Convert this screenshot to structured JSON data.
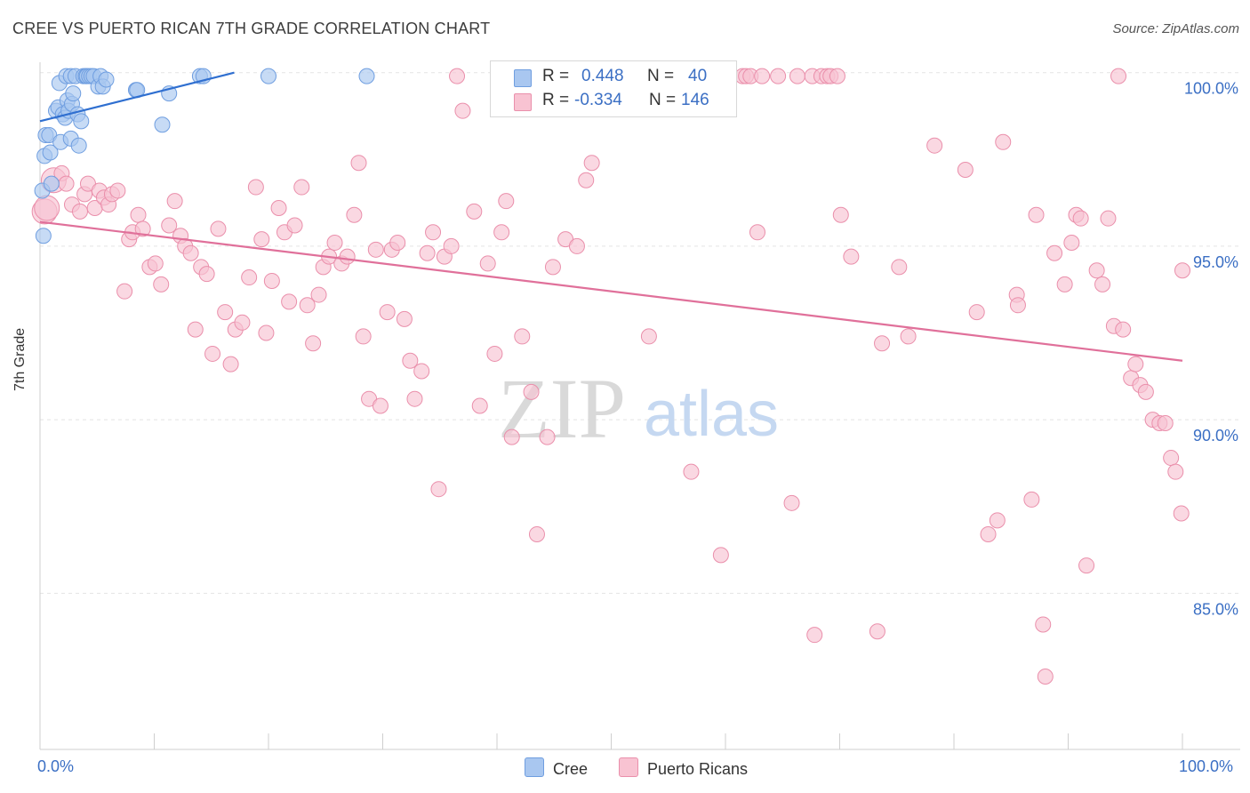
{
  "title": "CREE VS PUERTO RICAN 7TH GRADE CORRELATION CHART",
  "source": "Source: ZipAtlas.com",
  "watermark": {
    "zip": "ZIP",
    "atlas": "atlas"
  },
  "legend": {
    "r_label": "R =",
    "n_label": "N =",
    "rows": [
      {
        "name": "Cree",
        "r": "0.448",
        "n": "40",
        "color": "#a9c7f0",
        "border": "#6f9ee0"
      },
      {
        "name": "Puerto Ricans",
        "r": "-0.334",
        "n": "146",
        "color": "#f8c3d2",
        "border": "#ea8fab"
      }
    ]
  },
  "axes": {
    "x_min_label": "0.0%",
    "x_max_label": "100.0%",
    "y_ticks": [
      "100.0%",
      "95.0%",
      "90.0%",
      "85.0%"
    ],
    "y_label": "7th Grade"
  },
  "chart_data": {
    "type": "scatter",
    "xlim": [
      0,
      100
    ],
    "ylim": [
      80.5,
      100.3
    ],
    "grid": true,
    "series": [
      {
        "name": "Cree",
        "color": "#6f9ee0",
        "fill": "#a9c7f0",
        "trend": {
          "x": [
            0,
            17
          ],
          "y": [
            98.6,
            100.0
          ]
        },
        "points": [
          [
            0.2,
            96.6
          ],
          [
            0.4,
            97.6
          ],
          [
            0.5,
            98.2
          ],
          [
            0.8,
            98.2
          ],
          [
            0.9,
            97.7
          ],
          [
            1.0,
            96.8
          ],
          [
            1.4,
            98.9
          ],
          [
            1.6,
            99.0
          ],
          [
            1.7,
            99.7
          ],
          [
            1.8,
            98.0
          ],
          [
            2.0,
            98.8
          ],
          [
            2.2,
            98.7
          ],
          [
            2.3,
            99.9
          ],
          [
            2.4,
            99.2
          ],
          [
            2.5,
            98.9
          ],
          [
            2.7,
            98.1
          ],
          [
            2.7,
            99.9
          ],
          [
            2.8,
            99.1
          ],
          [
            2.9,
            99.4
          ],
          [
            3.1,
            99.9
          ],
          [
            3.3,
            98.8
          ],
          [
            3.4,
            97.9
          ],
          [
            3.6,
            98.6
          ],
          [
            3.8,
            99.9
          ],
          [
            4.0,
            99.9
          ],
          [
            4.1,
            99.9
          ],
          [
            4.3,
            99.9
          ],
          [
            4.5,
            99.9
          ],
          [
            4.7,
            99.9
          ],
          [
            5.1,
            99.6
          ],
          [
            5.3,
            99.9
          ],
          [
            5.5,
            99.6
          ],
          [
            5.8,
            99.8
          ],
          [
            8.4,
            99.5
          ],
          [
            8.5,
            99.5
          ],
          [
            10.7,
            98.5
          ],
          [
            11.3,
            99.4
          ],
          [
            14.0,
            99.9
          ],
          [
            14.3,
            99.9
          ],
          [
            20.0,
            99.9
          ],
          [
            28.6,
            99.9
          ],
          [
            0.3,
            95.3
          ]
        ]
      },
      {
        "name": "Puerto Ricans",
        "color": "#ea8fab",
        "fill": "#f8c3d2",
        "trend": {
          "x": [
            0,
            100
          ],
          "y": [
            95.7,
            91.7
          ]
        },
        "points": [
          [
            0.4,
            96.0
          ],
          [
            1.2,
            96.9
          ],
          [
            1.9,
            97.1
          ],
          [
            2.3,
            96.8
          ],
          [
            2.8,
            96.2
          ],
          [
            3.5,
            96.0
          ],
          [
            3.9,
            96.5
          ],
          [
            4.2,
            96.8
          ],
          [
            4.8,
            96.1
          ],
          [
            5.2,
            96.6
          ],
          [
            5.6,
            96.4
          ],
          [
            6.0,
            96.2
          ],
          [
            6.3,
            96.5
          ],
          [
            6.8,
            96.6
          ],
          [
            7.4,
            93.7
          ],
          [
            7.8,
            95.2
          ],
          [
            8.1,
            95.4
          ],
          [
            8.6,
            95.9
          ],
          [
            9.0,
            95.5
          ],
          [
            9.6,
            94.4
          ],
          [
            10.1,
            94.5
          ],
          [
            10.6,
            93.9
          ],
          [
            11.3,
            95.6
          ],
          [
            11.8,
            96.3
          ],
          [
            12.3,
            95.3
          ],
          [
            12.7,
            95.0
          ],
          [
            13.2,
            94.8
          ],
          [
            13.6,
            92.6
          ],
          [
            14.1,
            94.4
          ],
          [
            14.6,
            94.2
          ],
          [
            15.1,
            91.9
          ],
          [
            15.6,
            95.5
          ],
          [
            16.2,
            93.1
          ],
          [
            16.7,
            91.6
          ],
          [
            17.1,
            92.6
          ],
          [
            17.7,
            92.8
          ],
          [
            18.3,
            94.1
          ],
          [
            18.9,
            96.7
          ],
          [
            19.4,
            95.2
          ],
          [
            19.8,
            92.5
          ],
          [
            20.3,
            94.0
          ],
          [
            20.9,
            96.1
          ],
          [
            21.4,
            95.4
          ],
          [
            21.8,
            93.4
          ],
          [
            22.3,
            95.6
          ],
          [
            22.9,
            96.7
          ],
          [
            23.4,
            93.3
          ],
          [
            23.9,
            92.2
          ],
          [
            24.4,
            93.6
          ],
          [
            24.8,
            94.4
          ],
          [
            25.3,
            94.7
          ],
          [
            25.8,
            95.1
          ],
          [
            26.4,
            94.5
          ],
          [
            26.9,
            94.7
          ],
          [
            27.5,
            95.9
          ],
          [
            27.9,
            97.4
          ],
          [
            28.3,
            92.4
          ],
          [
            28.8,
            90.6
          ],
          [
            29.4,
            94.9
          ],
          [
            29.8,
            90.4
          ],
          [
            30.4,
            93.1
          ],
          [
            30.8,
            94.9
          ],
          [
            31.3,
            95.1
          ],
          [
            31.9,
            92.9
          ],
          [
            32.4,
            91.7
          ],
          [
            32.8,
            90.6
          ],
          [
            33.4,
            91.4
          ],
          [
            33.9,
            94.8
          ],
          [
            34.4,
            95.4
          ],
          [
            34.9,
            88.0
          ],
          [
            35.4,
            94.7
          ],
          [
            36.0,
            95.0
          ],
          [
            36.5,
            99.9
          ],
          [
            37.0,
            98.9
          ],
          [
            38.0,
            96.0
          ],
          [
            38.5,
            90.4
          ],
          [
            39.2,
            94.5
          ],
          [
            39.8,
            91.9
          ],
          [
            40.4,
            95.4
          ],
          [
            40.8,
            96.3
          ],
          [
            41.3,
            89.5
          ],
          [
            42.2,
            92.4
          ],
          [
            43.0,
            90.8
          ],
          [
            43.5,
            86.7
          ],
          [
            44.4,
            89.5
          ],
          [
            44.9,
            94.4
          ],
          [
            46.0,
            95.2
          ],
          [
            47.0,
            95.0
          ],
          [
            47.8,
            96.9
          ],
          [
            48.3,
            97.4
          ],
          [
            48.9,
            99.9
          ],
          [
            50.5,
            99.9
          ],
          [
            51.3,
            99.9
          ],
          [
            52.0,
            99.9
          ],
          [
            53.3,
            92.4
          ],
          [
            55.6,
            99.9
          ],
          [
            56.7,
            99.9
          ],
          [
            57.0,
            88.5
          ],
          [
            58.6,
            99.9
          ],
          [
            59.6,
            86.1
          ],
          [
            60.2,
            99.9
          ],
          [
            61.5,
            99.9
          ],
          [
            61.8,
            99.9
          ],
          [
            62.2,
            99.9
          ],
          [
            62.8,
            95.4
          ],
          [
            63.2,
            99.9
          ],
          [
            64.6,
            99.9
          ],
          [
            65.8,
            87.6
          ],
          [
            66.3,
            99.9
          ],
          [
            67.6,
            99.9
          ],
          [
            67.8,
            83.8
          ],
          [
            68.4,
            99.9
          ],
          [
            68.9,
            99.9
          ],
          [
            69.2,
            99.9
          ],
          [
            69.8,
            99.9
          ],
          [
            70.1,
            95.9
          ],
          [
            71.0,
            94.7
          ],
          [
            73.3,
            83.9
          ],
          [
            73.7,
            92.2
          ],
          [
            75.2,
            94.4
          ],
          [
            76.0,
            92.4
          ],
          [
            78.3,
            97.9
          ],
          [
            81.0,
            97.2
          ],
          [
            82.0,
            93.1
          ],
          [
            83.0,
            86.7
          ],
          [
            83.8,
            87.1
          ],
          [
            84.3,
            98.0
          ],
          [
            85.5,
            93.6
          ],
          [
            85.6,
            93.3
          ],
          [
            86.8,
            87.7
          ],
          [
            87.2,
            95.9
          ],
          [
            87.8,
            84.1
          ],
          [
            88.0,
            82.6
          ],
          [
            88.8,
            94.8
          ],
          [
            89.7,
            93.9
          ],
          [
            90.3,
            95.1
          ],
          [
            90.7,
            95.9
          ],
          [
            91.1,
            95.8
          ],
          [
            91.6,
            85.8
          ],
          [
            92.5,
            94.3
          ],
          [
            93.0,
            93.9
          ],
          [
            93.5,
            95.8
          ],
          [
            94.0,
            92.7
          ],
          [
            94.4,
            99.9
          ],
          [
            94.8,
            92.6
          ],
          [
            95.5,
            91.2
          ],
          [
            95.9,
            91.6
          ],
          [
            96.3,
            91.0
          ],
          [
            96.8,
            90.8
          ],
          [
            97.4,
            90.0
          ],
          [
            98.0,
            89.9
          ],
          [
            98.5,
            89.9
          ],
          [
            99.0,
            88.9
          ],
          [
            99.4,
            88.5
          ],
          [
            99.9,
            87.3
          ],
          [
            100.0,
            94.3
          ],
          [
            0.6,
            96.1
          ]
        ]
      }
    ]
  }
}
